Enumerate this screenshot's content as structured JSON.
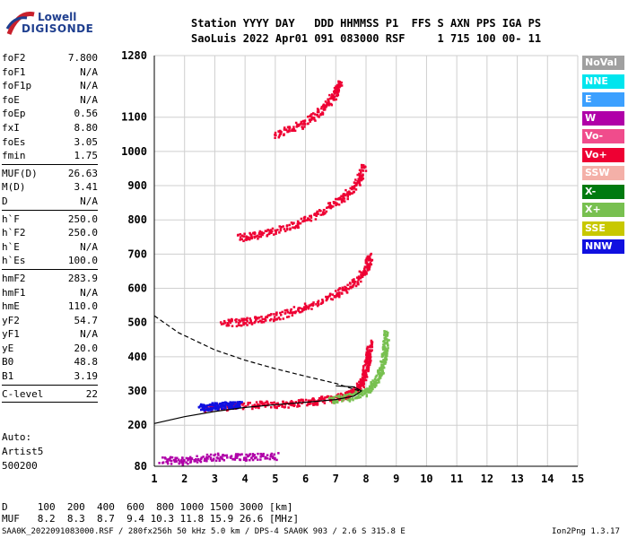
{
  "logo": {
    "line1": "Lowell",
    "line2": "DIGISONDE"
  },
  "header": {
    "row1": "Station YYYY DAY   DDD HHMMSS P1  FFS S AXN PPS IGA PS",
    "row2": "SaoLuis 2022 Apr01 091 083000 RSF     1 715 100 00- 11"
  },
  "params_group1": [
    {
      "name": "foF2",
      "value": "7.800"
    },
    {
      "name": "foF1",
      "value": "N/A"
    },
    {
      "name": "foF1p",
      "value": "N/A"
    },
    {
      "name": "foE",
      "value": "N/A"
    },
    {
      "name": "foEp",
      "value": "0.56"
    },
    {
      "name": "fxI",
      "value": "8.80"
    },
    {
      "name": "foEs",
      "value": "3.05"
    },
    {
      "name": "fmin",
      "value": "1.75"
    }
  ],
  "params_group2": [
    {
      "name": "MUF(D)",
      "value": "26.63"
    },
    {
      "name": "M(D)",
      "value": "3.41"
    },
    {
      "name": "D",
      "value": "N/A"
    }
  ],
  "params_group3": [
    {
      "name": "h`F",
      "value": "250.0"
    },
    {
      "name": "h`F2",
      "value": "250.0"
    },
    {
      "name": "h`E",
      "value": "N/A"
    },
    {
      "name": "h`Es",
      "value": "100.0"
    }
  ],
  "params_group4": [
    {
      "name": "hmF2",
      "value": "283.9"
    },
    {
      "name": "hmF1",
      "value": "N/A"
    },
    {
      "name": "hmE",
      "value": "110.0"
    },
    {
      "name": "yF2",
      "value": "54.7"
    },
    {
      "name": "yF1",
      "value": "N/A"
    },
    {
      "name": "yE",
      "value": "20.0"
    },
    {
      "name": "B0",
      "value": "48.8"
    },
    {
      "name": "B1",
      "value": "3.19"
    }
  ],
  "params_group5": [
    {
      "name": "C-level",
      "value": "22"
    }
  ],
  "auto": {
    "line1": "Auto:",
    "line2": "Artist5",
    "line3": "500200"
  },
  "legend": [
    {
      "label": "NoVal",
      "color": "#a0a0a0"
    },
    {
      "label": "NNE",
      "color": "#00e5ee"
    },
    {
      "label": "E",
      "color": "#3ca0ff"
    },
    {
      "label": "W",
      "color": "#b000a8"
    },
    {
      "label": "Vo-",
      "color": "#f04c8c"
    },
    {
      "label": "Vo+",
      "color": "#ee0033"
    },
    {
      "label": "SSW",
      "color": "#f4b0a8"
    },
    {
      "label": "X-",
      "color": "#007a10"
    },
    {
      "label": "X+",
      "color": "#78c050"
    },
    {
      "label": "SSE",
      "color": "#c8c800"
    },
    {
      "label": "NNW",
      "color": "#1010e0"
    }
  ],
  "footer": {
    "row1": "D     100  200  400  600  800 1000 1500 3000 [km]",
    "row2": "MUF   8.2  8.3  8.7  9.4 10.3 11.8 15.9 26.6 [MHz]",
    "row3": "SAA0K_2022091083000.RSF / 280fx256h 50 kHz 5.0 km / DPS-4 SAA0K 903 / 2.6 S 315.8 E",
    "version": "Ion2Png 1.3.17"
  },
  "chart_data": {
    "type": "scatter",
    "xlim": [
      1,
      15
    ],
    "ylim": [
      80,
      1280
    ],
    "grid": true,
    "x_ticks": [
      1,
      2,
      3,
      4,
      5,
      6,
      7,
      8,
      9,
      10,
      11,
      12,
      13,
      14,
      15
    ],
    "y_ticks": [
      80,
      200,
      300,
      400,
      500,
      600,
      700,
      800,
      900,
      1000,
      1100,
      1280
    ],
    "y_ticks_labeled": [
      80,
      200,
      300,
      400,
      500,
      600,
      700,
      800,
      900,
      1000,
      1100,
      1280
    ],
    "traces": [
      {
        "name": "O-trace F2 first hop",
        "color": "#ee0033",
        "points": [
          [
            2.6,
            250
          ],
          [
            3.5,
            258
          ],
          [
            4.5,
            262
          ],
          [
            5.5,
            265
          ],
          [
            6.3,
            272
          ],
          [
            7.0,
            282
          ],
          [
            7.5,
            295
          ],
          [
            7.8,
            320
          ],
          [
            7.95,
            360
          ],
          [
            8.05,
            400
          ],
          [
            8.1,
            440
          ]
        ]
      },
      {
        "name": "X-trace F2 first hop",
        "color": "#78c050",
        "points": [
          [
            6.8,
            275
          ],
          [
            7.5,
            285
          ],
          [
            8.0,
            300
          ],
          [
            8.3,
            330
          ],
          [
            8.5,
            370
          ],
          [
            8.6,
            420
          ],
          [
            8.65,
            470
          ]
        ]
      },
      {
        "name": "second hop",
        "color": "#ee0033",
        "points": [
          [
            3.2,
            500
          ],
          [
            4.0,
            505
          ],
          [
            5.0,
            520
          ],
          [
            6.0,
            548
          ],
          [
            7.0,
            585
          ],
          [
            7.6,
            620
          ],
          [
            8.0,
            660
          ],
          [
            8.1,
            700
          ]
        ]
      },
      {
        "name": "third hop",
        "color": "#ee0033",
        "points": [
          [
            3.8,
            750
          ],
          [
            4.5,
            760
          ],
          [
            5.5,
            785
          ],
          [
            6.5,
            825
          ],
          [
            7.2,
            865
          ],
          [
            7.7,
            910
          ],
          [
            7.9,
            960
          ]
        ]
      },
      {
        "name": "fourth hop",
        "color": "#ee0033",
        "points": [
          [
            5.0,
            1050
          ],
          [
            5.8,
            1080
          ],
          [
            6.5,
            1120
          ],
          [
            6.9,
            1165
          ],
          [
            7.1,
            1200
          ]
        ]
      },
      {
        "name": "Es layer",
        "color": "#1010e0",
        "points": [
          [
            2.5,
            255
          ],
          [
            3.0,
            258
          ],
          [
            3.4,
            260
          ],
          [
            3.8,
            262
          ]
        ]
      },
      {
        "name": "E region echoes",
        "color": "#b000a8",
        "points": [
          [
            1.2,
            100
          ],
          [
            2.0,
            98
          ],
          [
            3.0,
            110
          ],
          [
            4.0,
            108
          ],
          [
            5.0,
            112
          ]
        ]
      }
    ],
    "profile_solid": [
      [
        1.0,
        205
      ],
      [
        2.0,
        225
      ],
      [
        3.0,
        240
      ],
      [
        4.0,
        252
      ],
      [
        5.0,
        260
      ],
      [
        6.0,
        267
      ],
      [
        7.0,
        275
      ],
      [
        7.6,
        285
      ],
      [
        7.85,
        300
      ],
      [
        7.6,
        312
      ],
      [
        7.0,
        315
      ]
    ],
    "profile_dashed": [
      [
        1.0,
        520
      ],
      [
        1.8,
        470
      ],
      [
        3.0,
        420
      ],
      [
        4.0,
        390
      ],
      [
        5.0,
        365
      ],
      [
        6.0,
        343
      ],
      [
        7.0,
        322
      ],
      [
        7.6,
        305
      ],
      [
        7.8,
        300
      ]
    ]
  }
}
